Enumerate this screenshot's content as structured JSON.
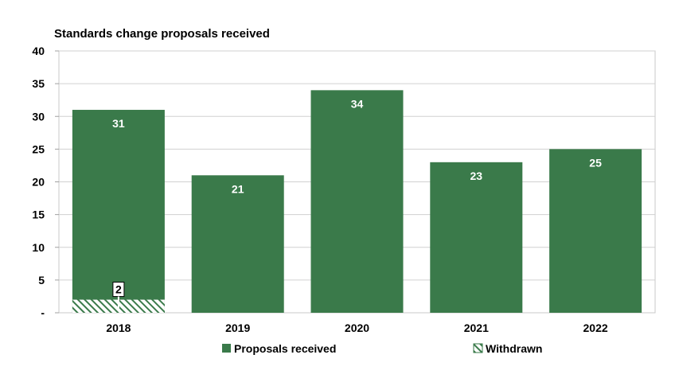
{
  "chart_data": {
    "type": "bar",
    "title": "Standards change proposals received",
    "xlabel": "",
    "ylabel": "",
    "categories": [
      "2018",
      "2019",
      "2020",
      "2021",
      "2022"
    ],
    "series": [
      {
        "name": "Proposals received",
        "values": [
          31,
          21,
          34,
          23,
          25
        ],
        "color": "#3a7a4a"
      },
      {
        "name": "Withdrawn",
        "values": [
          2,
          0,
          0,
          0,
          0
        ],
        "color": "#3a7a4a",
        "pattern": "diagonal-hatch"
      }
    ],
    "ylim": [
      0,
      40
    ],
    "yticks": [
      "-",
      "5",
      "10",
      "15",
      "20",
      "25",
      "30",
      "35",
      "40"
    ],
    "ytick_values": [
      0,
      5,
      10,
      15,
      20,
      25,
      30,
      35,
      40
    ],
    "data_labels": {
      "Proposals received": [
        "31",
        "21",
        "34",
        "23",
        "25"
      ],
      "Withdrawn": [
        "2",
        "",
        "",
        "",
        ""
      ]
    },
    "grid": true,
    "legend_position": "bottom"
  }
}
